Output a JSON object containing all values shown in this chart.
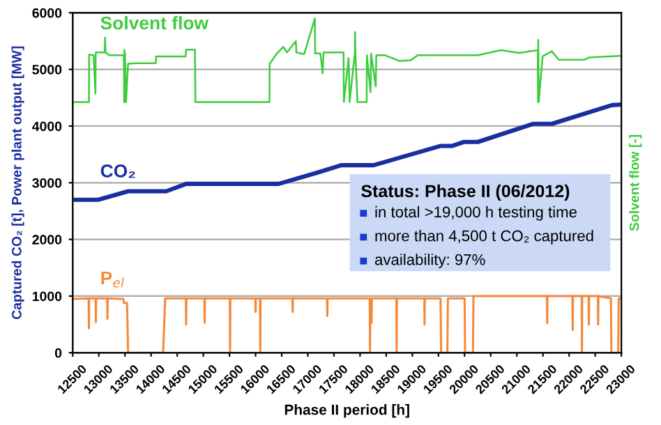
{
  "chart_data": {
    "type": "line",
    "xlabel": "Phase II period [h]",
    "ylabel": "Captured CO₂ [t], Power plant output [MW]",
    "y2label": "Solvent flow [-]",
    "xlim": [
      12500,
      23000
    ],
    "xticks": [
      12500,
      13000,
      13500,
      14000,
      14500,
      15000,
      15500,
      16000,
      16500,
      17000,
      17500,
      18000,
      18500,
      19000,
      19500,
      20000,
      20500,
      21000,
      21500,
      22000,
      22500,
      23000
    ],
    "ylim": [
      0,
      6000
    ],
    "yticks": [
      0,
      1000,
      2000,
      3000,
      4000,
      5000,
      6000
    ],
    "grid": "y",
    "legend": false,
    "annotations": [
      "Status: Phase II (06/2012)",
      "in total >19,000 h testing time",
      "more than 4,500 t CO₂ captured",
      "availability: 97%"
    ],
    "series": [
      {
        "name": "Solvent flow",
        "color": "#3ccc3c",
        "x": [
          12500,
          12810,
          12815,
          12900,
          12935,
          12940,
          12945,
          13000,
          13110,
          13120,
          13130,
          13200,
          13480,
          13485,
          13490,
          13495,
          13500,
          13520,
          13560,
          13696,
          13700,
          14090,
          14095,
          14660,
          14671,
          14840,
          14848,
          16266,
          16270,
          16398,
          16531,
          16600,
          16771,
          16780,
          16930,
          17134,
          17140,
          17240,
          17284,
          17300,
          17373,
          17683,
          17690,
          17780,
          17800,
          17900,
          17905,
          17910,
          17949,
          18126,
          18130,
          18200,
          18210,
          18300,
          18310,
          18392,
          18481,
          18746,
          18968,
          19101,
          20253,
          20696,
          21050,
          21400,
          21405,
          21410,
          21420,
          21493,
          21670,
          21803,
          22291,
          22379,
          23000
        ],
        "values": [
          4425,
          4425,
          5260,
          5250,
          4570,
          5250,
          5300,
          5300,
          5300,
          5560,
          5300,
          5250,
          5250,
          4425,
          5350,
          4425,
          5300,
          4425,
          5100,
          5110,
          5110,
          5110,
          5230,
          5230,
          5350,
          5350,
          4425,
          4425,
          5100,
          5270,
          5400,
          5300,
          5500,
          5300,
          5270,
          5900,
          5280,
          5280,
          4930,
          5300,
          5300,
          5300,
          4425,
          5200,
          4425,
          5300,
          5660,
          5300,
          4425,
          4425,
          5250,
          4600,
          5280,
          4700,
          5250,
          5250,
          5250,
          5150,
          5160,
          5250,
          5250,
          5340,
          5290,
          5340,
          4425,
          5520,
          4425,
          5230,
          5320,
          5170,
          5170,
          5210,
          5240
        ]
      },
      {
        "name": "CO₂",
        "color": "#1a2ea0",
        "x": [
          12500,
          12987,
          13563,
          14290,
          14671,
          16443,
          17150,
          17639,
          18259,
          19544,
          19766,
          19987,
          20253,
          21316,
          21670,
          22822,
          23000
        ],
        "values": [
          2700,
          2700,
          2850,
          2850,
          2980,
          2980,
          3170,
          3310,
          3310,
          3650,
          3650,
          3720,
          3720,
          4040,
          4040,
          4370,
          4380
        ]
      },
      {
        "name": "P$_{el}$",
        "color": "#f5893a",
        "x": [
          12500,
          12805,
          12810,
          12815,
          12938,
          12943,
          12948,
          13160,
          13165,
          13170,
          13470,
          13480,
          13540,
          13560,
          14230,
          14270,
          14666,
          14671,
          14676,
          15020,
          15025,
          15030,
          15507,
          15512,
          15517,
          15995,
          16000,
          16005,
          16085,
          16090,
          16095,
          16704,
          16709,
          16714,
          17368,
          17373,
          17378,
          18185,
          18190,
          18195,
          18215,
          18220,
          18225,
          18690,
          18695,
          18700,
          18705,
          19229,
          19234,
          19239,
          19540,
          19550,
          19670,
          19680,
          20000,
          20010,
          20160,
          20170,
          21576,
          21581,
          21586,
          22064,
          22069,
          22074,
          22241,
          22246,
          22251,
          22374,
          22379,
          22384,
          22551,
          22556,
          22561,
          22800,
          22810,
          22940,
          22950,
          23000
        ],
        "values": [
          950,
          960,
          430,
          960,
          960,
          540,
          960,
          960,
          600,
          960,
          950,
          880,
          880,
          0,
          0,
          960,
          960,
          500,
          960,
          960,
          530,
          960,
          960,
          0,
          960,
          960,
          720,
          960,
          960,
          0,
          960,
          960,
          720,
          960,
          960,
          650,
          960,
          960,
          0,
          960,
          960,
          530,
          960,
          960,
          960,
          0,
          960,
          960,
          500,
          960,
          960,
          0,
          0,
          960,
          960,
          0,
          0,
          1000,
          1000,
          520,
          1000,
          1000,
          400,
          1000,
          1000,
          0,
          1000,
          1000,
          500,
          1000,
          1000,
          500,
          1000,
          960,
          0,
          0,
          960,
          960
        ]
      }
    ]
  }
}
